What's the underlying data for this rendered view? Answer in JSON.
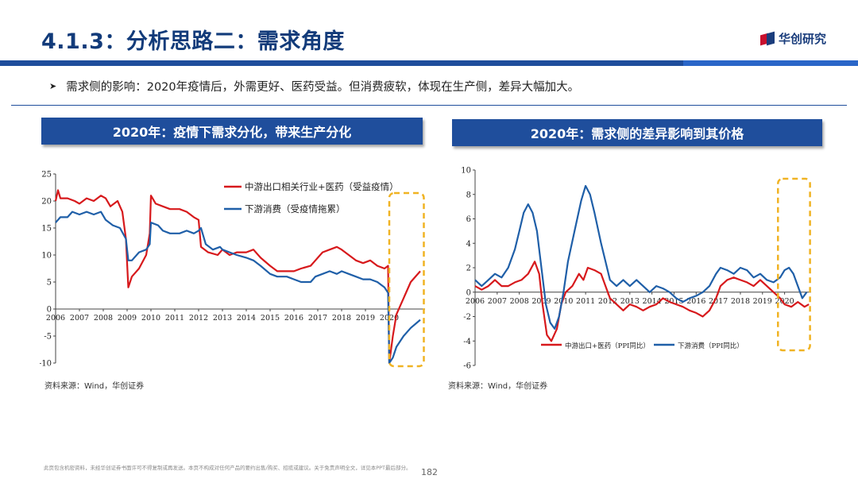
{
  "header": {
    "title": "4.1.3：分析思路二：需求角度",
    "logo": "华创研究"
  },
  "bullet": "需求侧的影响：2020年疫情后，外需更好、医药受益。但消费疲软，体现在生产侧，差异大幅加大。",
  "colors": {
    "red": "#d7191c",
    "blue": "#1f5fa8",
    "highlight": "#f0b323",
    "brand": "#1f4e9c"
  },
  "footer": {
    "disclaimer": "此页包含机密资料，未经华创证券书面许可不得复制或再发送。本页不构成对任何产品的要约出售/购买、招揽或建议。关于免责声明全文，详见本PPT最后部分。",
    "page": "182"
  },
  "chart_data": [
    {
      "type": "line",
      "title": "2020年：疫情下需求分化，带来生产分化",
      "source": "资料来源：Wind，华创证券",
      "xlim": [
        2006,
        2021.5
      ],
      "ylim": [
        -10,
        25
      ],
      "x_ticks": [
        "2006",
        "2007",
        "2008",
        "2009",
        "2010",
        "2011",
        "2012",
        "2013",
        "2014",
        "2015",
        "2016",
        "2017",
        "2018",
        "2019",
        "2020"
      ],
      "y_ticks": [
        "25",
        "20",
        "15",
        "10",
        "5",
        "0",
        "-5",
        "-10"
      ],
      "grid": false,
      "legend_position": "top-right",
      "series": [
        {
          "name": "中游出口相关行业+医药（受益疫情）",
          "color": "red",
          "points": [
            [
              2006,
              20
            ],
            [
              2006.1,
              22
            ],
            [
              2006.2,
              20.5
            ],
            [
              2006.5,
              20.5
            ],
            [
              2006.8,
              20
            ],
            [
              2007,
              19.5
            ],
            [
              2007.3,
              20.5
            ],
            [
              2007.6,
              20
            ],
            [
              2007.9,
              21
            ],
            [
              2008.1,
              20.5
            ],
            [
              2008.3,
              19
            ],
            [
              2008.6,
              20
            ],
            [
              2008.8,
              18
            ],
            [
              2008.95,
              13
            ],
            [
              2009.05,
              4
            ],
            [
              2009.2,
              6
            ],
            [
              2009.5,
              7.5
            ],
            [
              2009.8,
              10
            ],
            [
              2009.95,
              14
            ],
            [
              2010.0,
              21
            ],
            [
              2010.2,
              19.5
            ],
            [
              2010.5,
              19
            ],
            [
              2010.8,
              18.5
            ],
            [
              2011.2,
              18.5
            ],
            [
              2011.5,
              18
            ],
            [
              2011.8,
              17
            ],
            [
              2012.0,
              16.5
            ],
            [
              2012.1,
              11.5
            ],
            [
              2012.4,
              10.5
            ],
            [
              2012.8,
              10
            ],
            [
              2013.0,
              11
            ],
            [
              2013.3,
              10
            ],
            [
              2013.6,
              10.5
            ],
            [
              2014.0,
              10.5
            ],
            [
              2014.3,
              11
            ],
            [
              2014.6,
              9.5
            ],
            [
              2015.0,
              8
            ],
            [
              2015.3,
              7
            ],
            [
              2015.7,
              7
            ],
            [
              2016.0,
              7
            ],
            [
              2016.3,
              7.5
            ],
            [
              2016.7,
              8
            ],
            [
              2016.9,
              9
            ],
            [
              2017.2,
              10.5
            ],
            [
              2017.5,
              11
            ],
            [
              2017.8,
              11.5
            ],
            [
              2018.0,
              11
            ],
            [
              2018.3,
              10
            ],
            [
              2018.6,
              9
            ],
            [
              2018.9,
              8.5
            ],
            [
              2019.2,
              9
            ],
            [
              2019.5,
              8
            ],
            [
              2019.8,
              7.5
            ],
            [
              2019.95,
              8
            ],
            [
              2020.0,
              -10
            ],
            [
              2020.15,
              -5
            ],
            [
              2020.3,
              -1
            ],
            [
              2020.6,
              2
            ],
            [
              2020.9,
              5
            ],
            [
              2021.3,
              7
            ]
          ]
        },
        {
          "name": "下游消费（受疫情拖累）",
          "color": "blue",
          "points": [
            [
              2006,
              16
            ],
            [
              2006.2,
              17
            ],
            [
              2006.5,
              17
            ],
            [
              2006.7,
              18
            ],
            [
              2007.0,
              17.5
            ],
            [
              2007.3,
              18
            ],
            [
              2007.6,
              17.5
            ],
            [
              2007.9,
              18
            ],
            [
              2008.1,
              16.5
            ],
            [
              2008.4,
              15.5
            ],
            [
              2008.7,
              15
            ],
            [
              2008.95,
              13
            ],
            [
              2009.05,
              9
            ],
            [
              2009.2,
              9
            ],
            [
              2009.5,
              10.5
            ],
            [
              2009.8,
              11
            ],
            [
              2009.95,
              12
            ],
            [
              2010.0,
              16
            ],
            [
              2010.3,
              15.5
            ],
            [
              2010.5,
              14.5
            ],
            [
              2010.8,
              14
            ],
            [
              2011.2,
              14
            ],
            [
              2011.5,
              14.5
            ],
            [
              2011.8,
              14
            ],
            [
              2012.0,
              14.5
            ],
            [
              2012.1,
              15
            ],
            [
              2012.3,
              12
            ],
            [
              2012.6,
              11
            ],
            [
              2012.9,
              11.5
            ],
            [
              2013.0,
              11
            ],
            [
              2013.3,
              10.5
            ],
            [
              2013.6,
              10
            ],
            [
              2014.0,
              9.5
            ],
            [
              2014.3,
              9
            ],
            [
              2014.6,
              8
            ],
            [
              2015.0,
              6.5
            ],
            [
              2015.3,
              6
            ],
            [
              2015.7,
              6
            ],
            [
              2016.0,
              5.5
            ],
            [
              2016.3,
              5
            ],
            [
              2016.7,
              5
            ],
            [
              2016.9,
              6
            ],
            [
              2017.2,
              6.5
            ],
            [
              2017.5,
              7
            ],
            [
              2017.8,
              6.5
            ],
            [
              2018.0,
              7
            ],
            [
              2018.3,
              6.5
            ],
            [
              2018.6,
              6
            ],
            [
              2018.9,
              5.5
            ],
            [
              2019.2,
              5.5
            ],
            [
              2019.5,
              5
            ],
            [
              2019.8,
              4
            ],
            [
              2019.95,
              3
            ],
            [
              2020.0,
              -10
            ],
            [
              2020.15,
              -9
            ],
            [
              2020.3,
              -7
            ],
            [
              2020.6,
              -5
            ],
            [
              2020.9,
              -3.5
            ],
            [
              2021.3,
              -2
            ]
          ]
        }
      ]
    },
    {
      "type": "line",
      "title": "2020年：需求侧的差异影响到其价格",
      "source": "资料来源：Wind，华创证券",
      "xlim": [
        2006,
        2021.2
      ],
      "ylim": [
        -6,
        10
      ],
      "x_ticks": [
        "2006",
        "2007",
        "2008",
        "2009",
        "2010",
        "2011",
        "2012",
        "2013",
        "2014",
        "2015",
        "2016",
        "2017",
        "2018",
        "2019",
        "2020"
      ],
      "y_ticks": [
        "10",
        "8",
        "6",
        "4",
        "2",
        "0",
        "-2",
        "-4",
        "-6"
      ],
      "grid": false,
      "legend_position": "bottom-left",
      "series": [
        {
          "name": "中游出口+医药（PPI同比）",
          "color": "red",
          "points": [
            [
              2006,
              0.5
            ],
            [
              2006.3,
              0.2
            ],
            [
              2006.6,
              0.5
            ],
            [
              2006.9,
              1
            ],
            [
              2007.2,
              0.5
            ],
            [
              2007.5,
              0.5
            ],
            [
              2007.8,
              0.8
            ],
            [
              2008.1,
              1
            ],
            [
              2008.4,
              1.5
            ],
            [
              2008.7,
              2.5
            ],
            [
              2008.9,
              1.5
            ],
            [
              2009.05,
              -1
            ],
            [
              2009.25,
              -3.5
            ],
            [
              2009.45,
              -4
            ],
            [
              2009.7,
              -3
            ],
            [
              2009.9,
              -1
            ],
            [
              2010.1,
              0
            ],
            [
              2010.4,
              0.5
            ],
            [
              2010.7,
              1.5
            ],
            [
              2010.9,
              1
            ],
            [
              2011.1,
              2
            ],
            [
              2011.4,
              1.8
            ],
            [
              2011.7,
              1.5
            ],
            [
              2011.9,
              0.5
            ],
            [
              2012.1,
              -0.5
            ],
            [
              2012.4,
              -1
            ],
            [
              2012.7,
              -1.5
            ],
            [
              2013.0,
              -1
            ],
            [
              2013.3,
              -1.2
            ],
            [
              2013.6,
              -1.5
            ],
            [
              2013.9,
              -1.2
            ],
            [
              2014.2,
              -1
            ],
            [
              2014.5,
              -0.5
            ],
            [
              2014.8,
              -0.8
            ],
            [
              2015.1,
              -1
            ],
            [
              2015.4,
              -1.2
            ],
            [
              2015.7,
              -1.5
            ],
            [
              2016.0,
              -1.7
            ],
            [
              2016.3,
              -2
            ],
            [
              2016.6,
              -1.5
            ],
            [
              2016.9,
              -0.5
            ],
            [
              2017.1,
              0.5
            ],
            [
              2017.4,
              1
            ],
            [
              2017.7,
              1.2
            ],
            [
              2018.0,
              1
            ],
            [
              2018.3,
              0.8
            ],
            [
              2018.6,
              0.5
            ],
            [
              2018.9,
              1
            ],
            [
              2019.2,
              0.5
            ],
            [
              2019.5,
              0
            ],
            [
              2019.8,
              -0.5
            ],
            [
              2020.0,
              -1
            ],
            [
              2020.3,
              -1.2
            ],
            [
              2020.6,
              -0.8
            ],
            [
              2020.9,
              -1.2
            ],
            [
              2021.1,
              -1
            ]
          ]
        },
        {
          "name": "下游消费（PPI同比）",
          "color": "blue",
          "points": [
            [
              2006,
              1
            ],
            [
              2006.3,
              0.5
            ],
            [
              2006.6,
              1
            ],
            [
              2006.9,
              1.5
            ],
            [
              2007.2,
              1.2
            ],
            [
              2007.5,
              2
            ],
            [
              2007.8,
              3.5
            ],
            [
              2008.0,
              5
            ],
            [
              2008.2,
              6.5
            ],
            [
              2008.4,
              7.2
            ],
            [
              2008.6,
              6.5
            ],
            [
              2008.8,
              5
            ],
            [
              2009.0,
              2
            ],
            [
              2009.2,
              -1
            ],
            [
              2009.4,
              -2.5
            ],
            [
              2009.6,
              -3
            ],
            [
              2009.8,
              -2
            ],
            [
              2010.0,
              0
            ],
            [
              2010.2,
              2.5
            ],
            [
              2010.5,
              5
            ],
            [
              2010.8,
              7.5
            ],
            [
              2011.0,
              8.7
            ],
            [
              2011.2,
              8
            ],
            [
              2011.4,
              6.5
            ],
            [
              2011.7,
              4
            ],
            [
              2011.9,
              2.5
            ],
            [
              2012.1,
              1
            ],
            [
              2012.4,
              0.5
            ],
            [
              2012.7,
              1
            ],
            [
              2013.0,
              0.5
            ],
            [
              2013.3,
              1
            ],
            [
              2013.6,
              0.5
            ],
            [
              2013.9,
              0
            ],
            [
              2014.2,
              0.5
            ],
            [
              2014.5,
              0.3
            ],
            [
              2014.8,
              0
            ],
            [
              2015.1,
              -0.5
            ],
            [
              2015.4,
              -0.8
            ],
            [
              2015.7,
              -0.5
            ],
            [
              2016.0,
              -0.3
            ],
            [
              2016.3,
              0
            ],
            [
              2016.6,
              0.5
            ],
            [
              2016.9,
              1.5
            ],
            [
              2017.1,
              2
            ],
            [
              2017.4,
              1.8
            ],
            [
              2017.7,
              1.5
            ],
            [
              2018.0,
              2
            ],
            [
              2018.3,
              1.8
            ],
            [
              2018.6,
              1.2
            ],
            [
              2018.9,
              1.5
            ],
            [
              2019.2,
              1
            ],
            [
              2019.5,
              0.8
            ],
            [
              2019.8,
              1.2
            ],
            [
              2020.0,
              1.8
            ],
            [
              2020.2,
              2
            ],
            [
              2020.4,
              1.5
            ],
            [
              2020.6,
              0.5
            ],
            [
              2020.8,
              -0.5
            ],
            [
              2021.0,
              0
            ]
          ]
        }
      ]
    }
  ]
}
